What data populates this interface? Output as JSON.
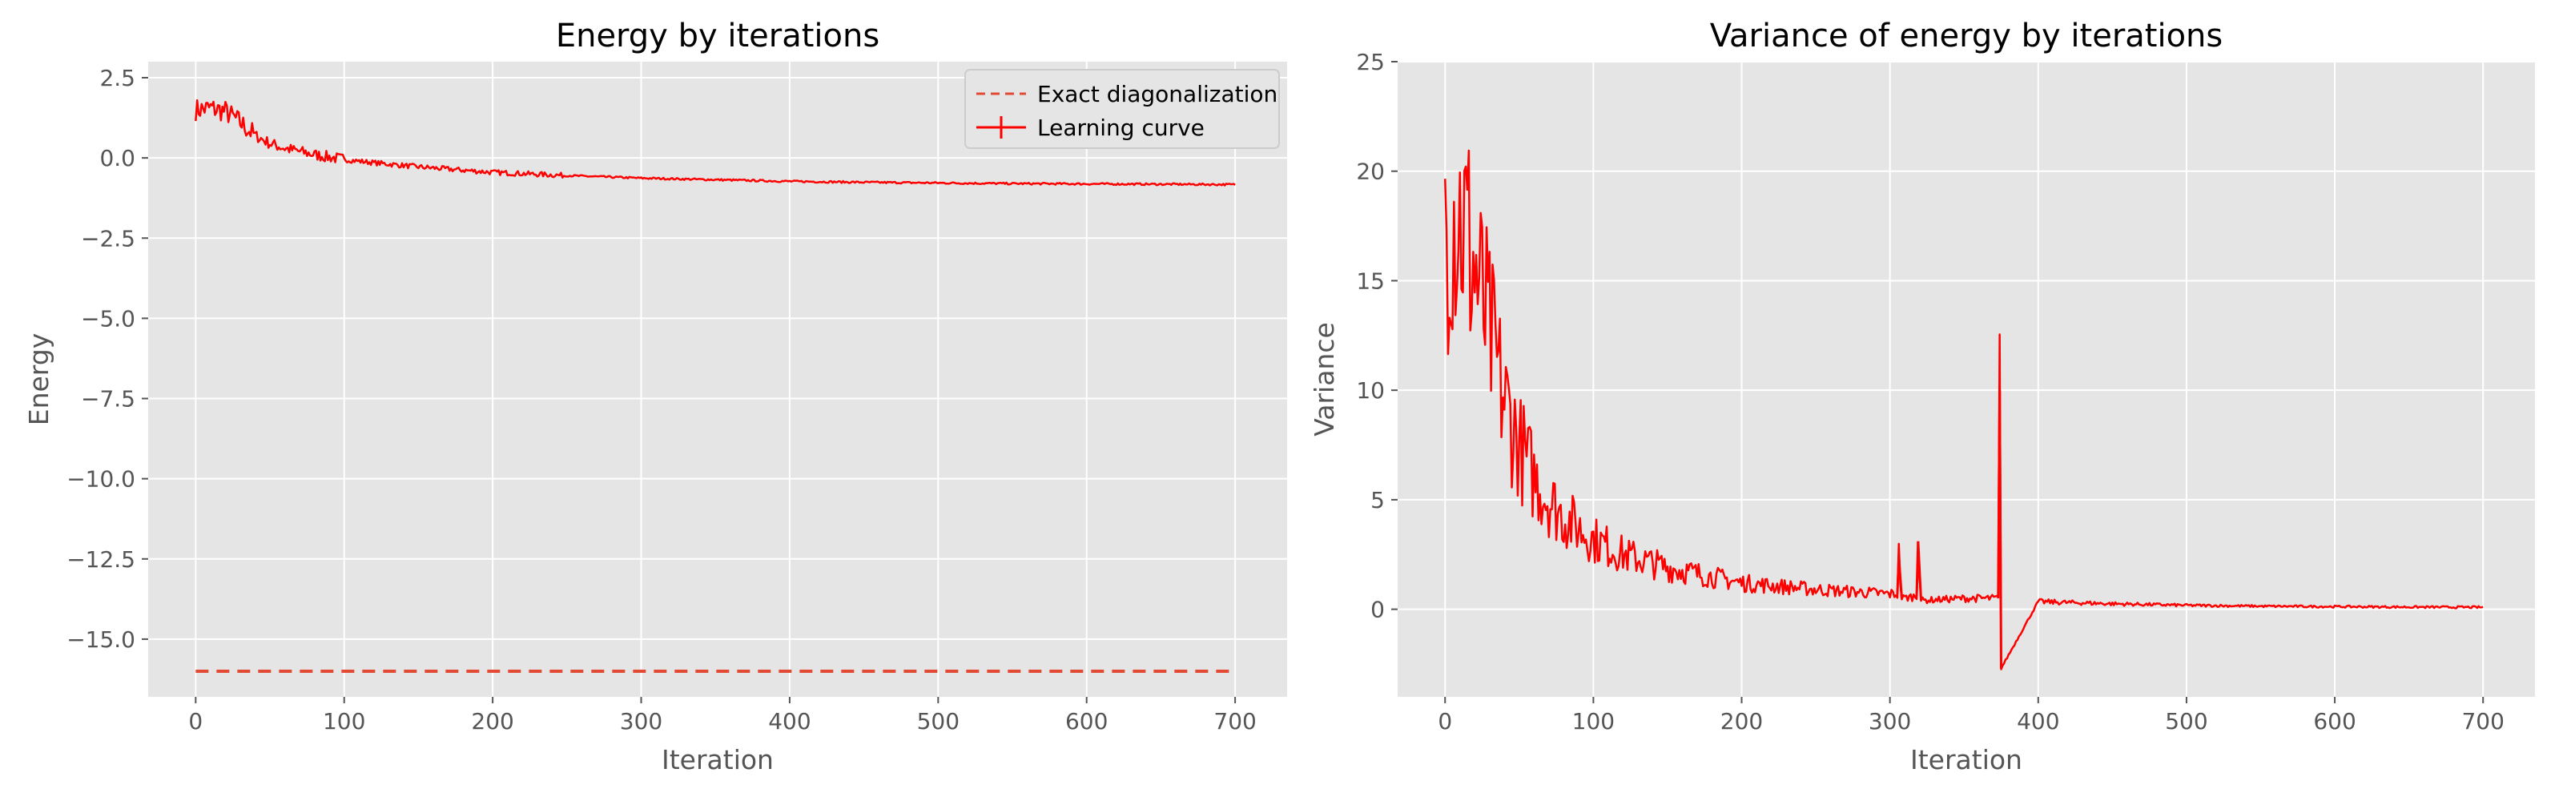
{
  "chart_data": [
    {
      "type": "line",
      "title": "Energy by iterations",
      "xlabel": "Iteration",
      "ylabel": "Energy",
      "xlim": [
        -32,
        735
      ],
      "ylim": [
        -16.8,
        3.0
      ],
      "xticks": [
        0,
        100,
        200,
        300,
        400,
        500,
        600,
        700
      ],
      "yticks": [
        2.5,
        0.0,
        -2.5,
        -5.0,
        -7.5,
        -10.0,
        -12.5,
        -15.0
      ],
      "ytick_labels": [
        "2.5",
        "0.0",
        "−2.5",
        "−5.0",
        "−7.5",
        "−10.0",
        "−12.5",
        "−15.0"
      ],
      "grid": true,
      "legend": "top-right",
      "series": [
        {
          "name": "Exact diagonalization",
          "style": "dashed",
          "color": "#E24A33",
          "x": [
            0,
            700
          ],
          "y": [
            -16.0,
            -16.0
          ]
        },
        {
          "name": "Learning curve",
          "style": "solid-errorbar",
          "color": "#FF0000",
          "x": [
            0,
            10,
            20,
            30,
            40,
            50,
            60,
            80,
            100,
            120,
            150,
            200,
            250,
            300,
            350,
            400,
            450,
            500,
            550,
            600,
            650,
            700
          ],
          "y": [
            1.5,
            1.55,
            1.45,
            1.1,
            0.7,
            0.45,
            0.3,
            0.1,
            -0.05,
            -0.15,
            -0.28,
            -0.45,
            -0.55,
            -0.63,
            -0.68,
            -0.73,
            -0.76,
            -0.78,
            -0.8,
            -0.81,
            -0.82,
            -0.83
          ]
        }
      ]
    },
    {
      "type": "line",
      "title": "Variance of energy by iterations",
      "xlabel": "Iteration",
      "ylabel": "Variance",
      "xlim": [
        -32,
        735
      ],
      "ylim": [
        -4,
        25
      ],
      "xticks": [
        0,
        100,
        200,
        300,
        400,
        500,
        600,
        700
      ],
      "yticks": [
        25,
        20,
        15,
        10,
        5,
        0
      ],
      "grid": true,
      "series": [
        {
          "color": "#FF0000",
          "x": [
            0,
            5,
            10,
            15,
            20,
            30,
            40,
            50,
            60,
            70,
            80,
            100,
            120,
            150,
            200,
            250,
            300,
            305,
            306,
            308,
            318,
            319,
            321,
            350,
            373,
            374,
            375,
            400,
            450,
            500,
            550,
            600,
            650,
            700
          ],
          "y": [
            17.5,
            18.5,
            18.0,
            17.0,
            15.5,
            12.5,
            9.5,
            7.5,
            6.0,
            5.0,
            4.2,
            3.2,
            2.5,
            1.9,
            1.2,
            0.9,
            0.7,
            0.7,
            2.4,
            0.5,
            0.6,
            3.1,
            0.4,
            0.5,
            0.5,
            10.0,
            -2.7,
            0.35,
            0.25,
            0.18,
            0.14,
            0.12,
            0.1,
            0.09
          ]
        }
      ]
    }
  ]
}
